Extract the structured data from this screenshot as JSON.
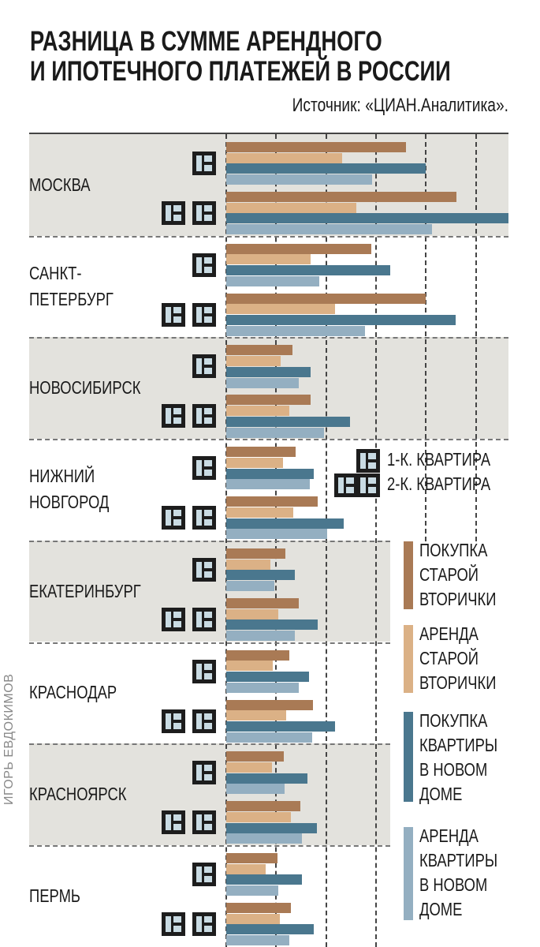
{
  "title_lines": [
    "РАЗНИЦА В СУММЕ АРЕНДНОГО",
    "И ИПОТЕЧНОГО ПЛАТЕЖЕЙ В РОССИИ"
  ],
  "source": "Источник: «ЦИАН.Аналитика».",
  "credit": "ИГОРЬ ЕВДОКИМОВ",
  "legend": {
    "apartments": [
      "1-К. КВАРТИРА",
      "2-К. КВАРТИРА"
    ],
    "series": [
      {
        "label": "ПОКУПКА\nСТАРОЙ\nВТОРИЧКИ",
        "color": "#a97a55"
      },
      {
        "label": "АРЕНДА\nСТАРОЙ\nВТОРИЧКИ",
        "color": "#dbb186"
      },
      {
        "label": "ПОКУПКА\nКВАРТИРЫ\nВ НОВОМ\nДОМЕ",
        "color": "#4a778e"
      },
      {
        "label": "АРЕНДА\nКВАРТИРЫ\nВ НОВОМ\nДОМЕ",
        "color": "#94afc1"
      }
    ]
  },
  "chart_data": {
    "type": "bar",
    "orientation": "horizontal",
    "title": "РАЗНИЦА В СУММЕ АРЕНДНОГО И ИПОТЕЧНОГО ПЛАТЕЖЕЙ В РОССИИ",
    "units": "unlabeled gridline intervals",
    "xlim": [
      0,
      5.65
    ],
    "grid": true,
    "legend_position": "right",
    "series": [
      "ПОКУПКА СТАРОЙ ВТОРИЧКИ",
      "АРЕНДА СТАРОЙ ВТОРИЧКИ",
      "ПОКУПКА КВАРТИРЫ В НОВОМ ДОМЕ",
      "АРЕНДА КВАРТИРЫ В НОВОМ ДОМЕ"
    ],
    "cities": [
      {
        "name": "МОСКВА",
        "one_room": [
          3.6,
          2.32,
          4.0,
          2.92
        ],
        "two_room": [
          4.62,
          2.61,
          5.65,
          4.12
        ]
      },
      {
        "name": "САНКТ-\nПЕТЕРБУРГ",
        "one_room": [
          2.91,
          1.69,
          3.28,
          1.86
        ],
        "two_room": [
          4.0,
          2.18,
          4.59,
          2.78
        ]
      },
      {
        "name": "НОВОСИБИРСК",
        "one_room": [
          1.32,
          1.09,
          1.69,
          1.46
        ],
        "two_room": [
          1.69,
          1.27,
          2.48,
          1.96
        ]
      },
      {
        "name": "НИЖНИЙ\nНОВГОРОД",
        "one_room": [
          1.39,
          1.14,
          1.75,
          1.68
        ],
        "two_room": [
          1.83,
          1.34,
          2.36,
          2.03
        ]
      },
      {
        "name": "ЕКАТЕРИНБУРГ",
        "one_room": [
          1.18,
          0.88,
          1.38,
          0.97
        ],
        "two_room": [
          1.45,
          1.04,
          1.84,
          1.38
        ]
      },
      {
        "name": "КРАСНОДАР",
        "one_room": [
          1.27,
          0.93,
          1.66,
          1.46
        ],
        "two_room": [
          1.74,
          1.2,
          2.18,
          1.72
        ]
      },
      {
        "name": "КРАСНОЯРСК",
        "one_room": [
          1.15,
          0.91,
          1.63,
          1.17
        ],
        "two_room": [
          1.49,
          1.3,
          1.82,
          1.52
        ]
      },
      {
        "name": "ПЕРМЬ",
        "one_room": [
          1.02,
          0.79,
          1.51,
          1.04
        ],
        "two_room": [
          1.29,
          1.08,
          1.75,
          1.27
        ]
      }
    ]
  }
}
